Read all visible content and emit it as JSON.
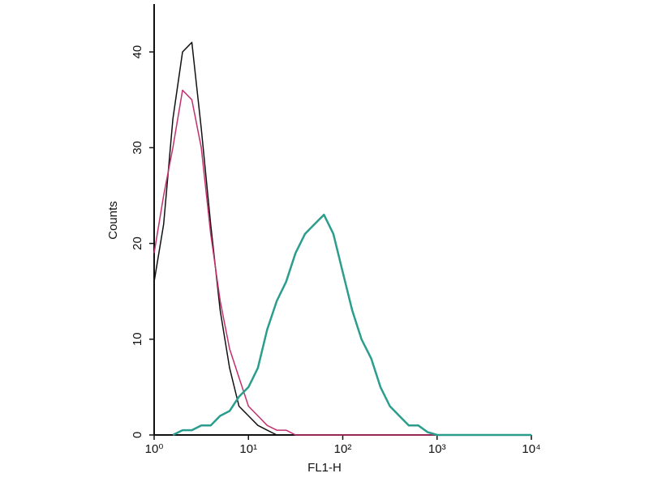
{
  "chart_data": {
    "type": "line",
    "xlabel": "FL1-H",
    "ylabel": "Counts",
    "x": [
      1,
      1.26,
      1.58,
      2,
      2.51,
      3.16,
      3.98,
      5.01,
      6.31,
      7.94,
      10,
      12.6,
      15.8,
      20,
      25.1,
      31.6,
      39.8,
      50.1,
      63.1,
      79.4,
      100,
      126,
      158,
      200,
      251,
      316,
      398,
      501,
      631,
      794,
      1000,
      1260,
      1580,
      2000,
      2510,
      3160,
      3980,
      5010,
      6310,
      7940,
      10000
    ],
    "series": [
      {
        "color": "#111111",
        "values": [
          16,
          22,
          33,
          40,
          41,
          32,
          22,
          13,
          7,
          3,
          2,
          1,
          0.5,
          0,
          0,
          null,
          null,
          null,
          null,
          null,
          null,
          null,
          null,
          null,
          null,
          null,
          null,
          null,
          null,
          null,
          null,
          null,
          null,
          null,
          null,
          null,
          null,
          null,
          null,
          null,
          null
        ]
      },
      {
        "color": "#c2306e",
        "values": [
          19,
          25,
          30,
          36,
          35,
          30,
          21,
          14,
          9,
          6,
          3,
          2,
          1,
          0.5,
          0.5,
          0,
          0,
          0,
          0,
          0,
          0,
          0,
          0,
          0,
          0,
          0,
          0,
          0,
          0,
          0,
          0,
          null,
          null,
          null,
          null,
          null,
          null,
          null,
          null,
          null,
          null
        ]
      },
      {
        "color": "#2a9d8c",
        "values": [
          null,
          null,
          0,
          0.5,
          0.5,
          1,
          1,
          2,
          2.5,
          4,
          5,
          7,
          11,
          14,
          16,
          19,
          21,
          22,
          23,
          21,
          17,
          13,
          10,
          8,
          5,
          3,
          2,
          1,
          1,
          0.3,
          0,
          0,
          0,
          0,
          0,
          0,
          0,
          0,
          0,
          0,
          0
        ]
      }
    ],
    "xscale": "log",
    "xlim": [
      1,
      10000
    ],
    "xticks": [
      {
        "value": 1,
        "label": "10⁰"
      },
      {
        "value": 10,
        "label": "10¹"
      },
      {
        "value": 100,
        "label": "10²"
      },
      {
        "value": 1000,
        "label": "10³"
      },
      {
        "value": 10000,
        "label": "10⁴"
      }
    ],
    "ylim": [
      0,
      45
    ],
    "yticks": [
      0,
      10,
      20,
      30,
      40
    ]
  }
}
